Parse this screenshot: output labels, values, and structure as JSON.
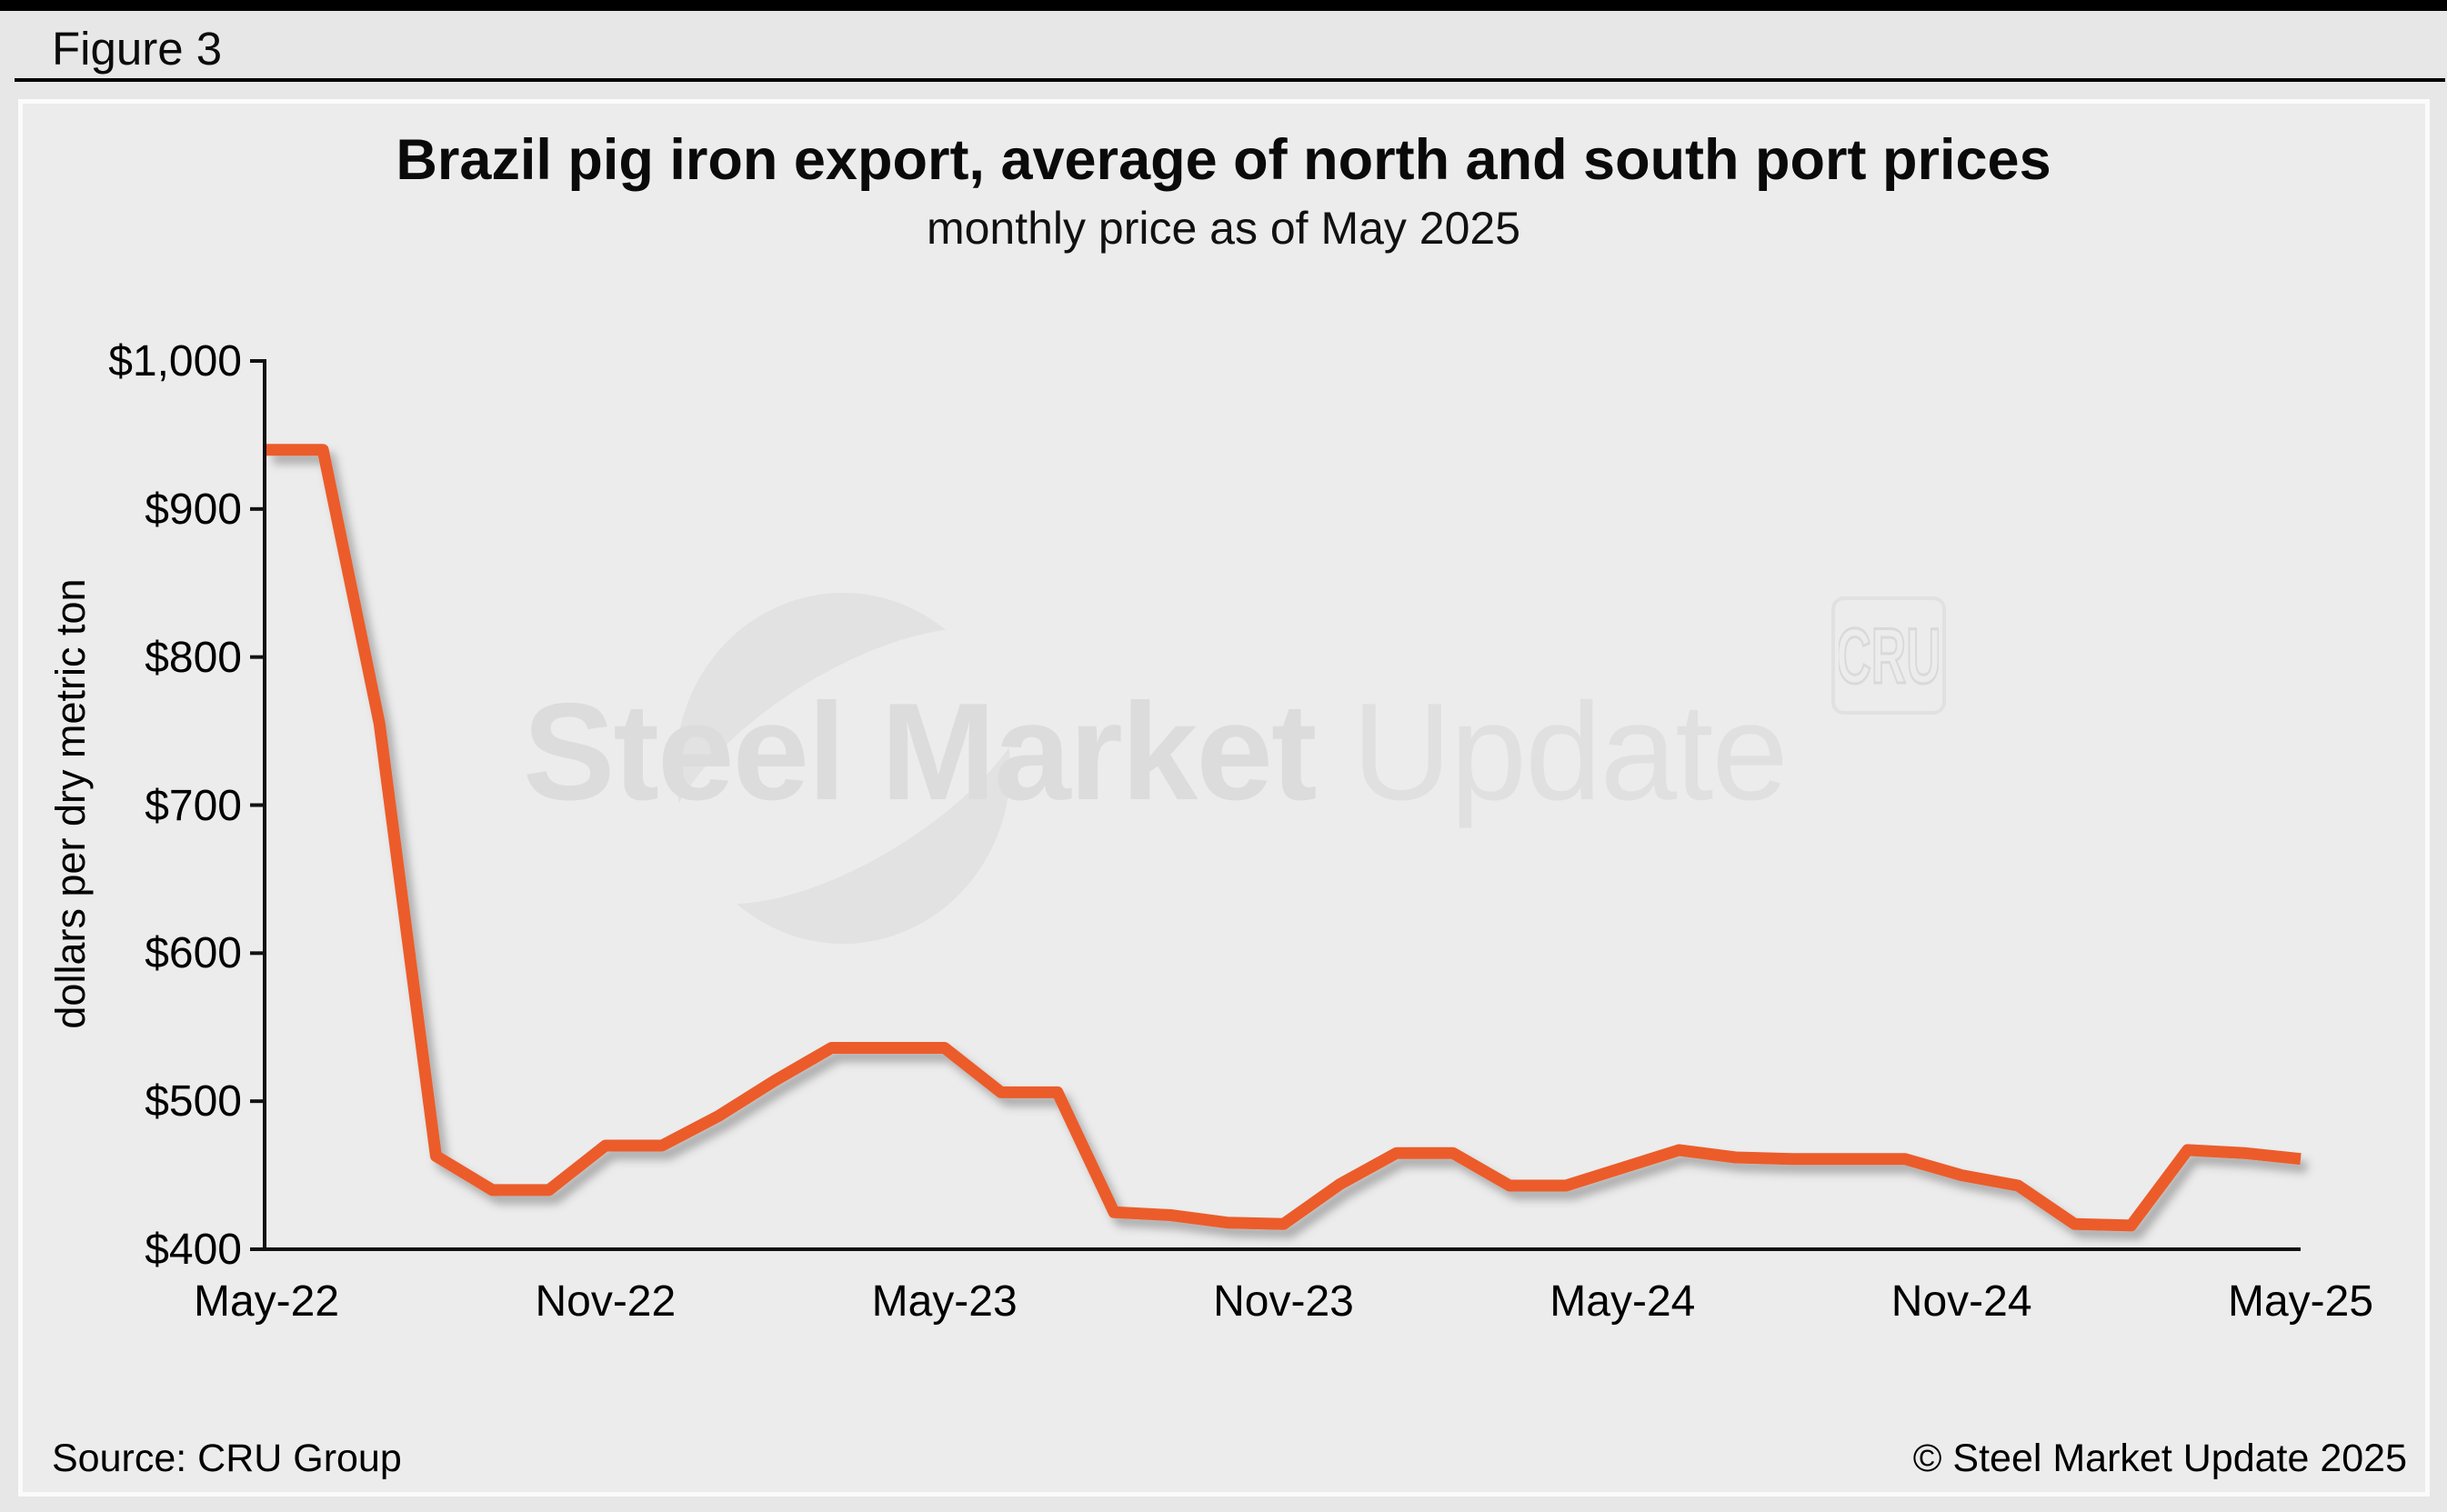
{
  "figure_label": "Figure 3",
  "chart_data": {
    "type": "line",
    "title": "Brazil pig iron export, average of north and south port prices",
    "subtitle": "monthly price as of May 2025",
    "ylabel": "dollars per dry metric ton",
    "xlabel": "",
    "ylim": [
      400,
      1000
    ],
    "grid": false,
    "legend_position": "none",
    "line_color": "#eb5b2c",
    "y_ticks": [
      {
        "label": "$1,000",
        "value": 1000
      },
      {
        "label": "$900",
        "value": 900
      },
      {
        "label": "$800",
        "value": 800
      },
      {
        "label": "$700",
        "value": 700
      },
      {
        "label": "$600",
        "value": 600
      },
      {
        "label": "$500",
        "value": 500
      },
      {
        "label": "$400",
        "value": 400
      }
    ],
    "x_ticks": [
      {
        "label": "May-22",
        "index": 0
      },
      {
        "label": "Nov-22",
        "index": 6
      },
      {
        "label": "May-23",
        "index": 12
      },
      {
        "label": "Nov-23",
        "index": 18
      },
      {
        "label": "May-24",
        "index": 24
      },
      {
        "label": "Nov-24",
        "index": 30
      },
      {
        "label": "May-25",
        "index": 36
      }
    ],
    "categories": [
      "May-22",
      "Jun-22",
      "Jul-22",
      "Aug-22",
      "Sep-22",
      "Oct-22",
      "Nov-22",
      "Dec-22",
      "Jan-23",
      "Feb-23",
      "Mar-23",
      "Apr-23",
      "May-23",
      "Jun-23",
      "Jul-23",
      "Aug-23",
      "Sep-23",
      "Oct-23",
      "Nov-23",
      "Dec-23",
      "Jan-24",
      "Feb-24",
      "Mar-24",
      "Apr-24",
      "May-24",
      "Jun-24",
      "Jul-24",
      "Aug-24",
      "Sep-24",
      "Oct-24",
      "Nov-24",
      "Dec-24",
      "Jan-25",
      "Feb-25",
      "Mar-25",
      "Apr-25",
      "May-25"
    ],
    "series": [
      {
        "name": "Brazil pig iron export price, average of north and south ports ($/dmt)",
        "values": [
          940,
          940,
          755,
          463,
          440,
          440,
          470,
          470,
          490,
          514,
          536,
          536,
          536,
          506,
          506,
          425,
          423,
          418,
          417,
          444,
          465,
          465,
          443,
          443,
          455,
          467,
          462,
          461,
          461,
          461,
          450,
          443,
          417,
          416,
          467,
          465,
          461
        ]
      }
    ]
  },
  "watermark": {
    "brand_bold": "Steel Market",
    "brand_light": " Update",
    "badge": "CRU"
  },
  "footer": {
    "source": "Source: CRU Group",
    "copyright": "© Steel Market Update 2025"
  }
}
